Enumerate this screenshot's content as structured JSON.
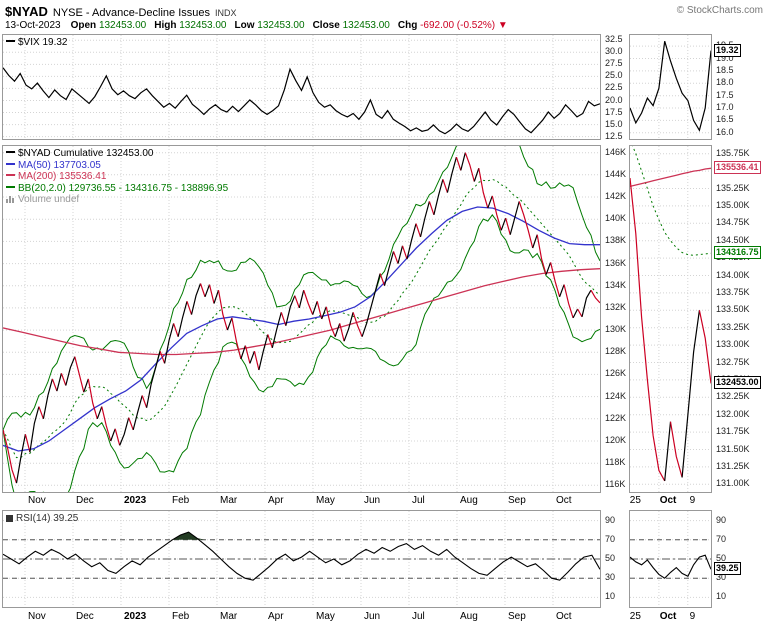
{
  "header": {
    "symbol": "$NYAD",
    "name": "NYSE - Advance-Decline Issues",
    "exchange": "INDX",
    "copyright": "© StockCharts.com",
    "date": "13-Oct-2023",
    "quote_items": [
      {
        "label": "Open",
        "value": "132453.00",
        "color": "#007000"
      },
      {
        "label": "High",
        "value": "132453.00",
        "color": "#007000"
      },
      {
        "label": "Low",
        "value": "132453.00",
        "color": "#007000"
      },
      {
        "label": "Close",
        "value": "132453.00",
        "color": "#007000"
      },
      {
        "label": "Chg",
        "value": "-692.00 (-0.52%) ▼",
        "color": "#cc0022"
      }
    ]
  },
  "colors": {
    "price_up": "#000000",
    "price_down": "#cc0022",
    "ma50": "#3333cc",
    "ma200": "#cc3355",
    "bbands": "#007a00",
    "vix": "#000000",
    "rsi": "#000000",
    "rsi_fill": "#223b22",
    "volume": "#999999",
    "grid": "#d4d4d4",
    "panel_border": "#999999"
  },
  "xaxis": {
    "months": [
      {
        "t": "Nov"
      },
      {
        "t": "Dec"
      },
      {
        "t": "2023",
        "bold": true
      },
      {
        "t": "Feb"
      },
      {
        "t": "Mar"
      },
      {
        "t": "Apr"
      },
      {
        "t": "May"
      },
      {
        "t": "Jun"
      },
      {
        "t": "Jul"
      },
      {
        "t": "Aug"
      },
      {
        "t": "Sep"
      },
      {
        "t": "Oct"
      }
    ],
    "zoom": [
      {
        "t": "25",
        "f": 0.01
      },
      {
        "t": "Oct",
        "f": 0.37,
        "bold": true
      },
      {
        "t": "9",
        "f": 0.73
      }
    ]
  },
  "chart_data": [
    {
      "id": "vix",
      "type": "line",
      "title": "$VIX",
      "last": 19.32,
      "legend": [
        {
          "icon": "line",
          "color": "#000000",
          "text": "$VIX 19.32"
        }
      ],
      "ylim": [
        12.0,
        33.6
      ],
      "yticks": [
        {
          "v": 32.5,
          "t": "32.5"
        },
        {
          "v": 30.0,
          "t": "30.0"
        },
        {
          "v": 27.5,
          "t": "27.5"
        },
        {
          "v": 25.0,
          "t": "25.0"
        },
        {
          "v": 22.5,
          "t": "22.5"
        },
        {
          "v": 20.0,
          "t": "20.0"
        },
        {
          "v": 17.5,
          "t": "17.5"
        },
        {
          "v": 15.0,
          "t": "15.0"
        },
        {
          "v": 12.5,
          "t": "12.5"
        }
      ],
      "months_grid": true,
      "series": [
        {
          "name": "$VIX",
          "color": "#000000",
          "width": 1.2,
          "values": [
            26.8,
            25.2,
            24.0,
            25.6,
            23.2,
            22.4,
            23.6,
            22.0,
            20.6,
            22.2,
            21.0,
            20.2,
            22.4,
            21.4,
            20.4,
            19.4,
            20.8,
            22.9,
            25.1,
            22.4,
            21.2,
            22.0,
            21.0,
            20.4,
            21.6,
            22.4,
            21.0,
            19.8,
            18.6,
            19.4,
            18.4,
            19.8,
            21.1,
            19.2,
            18.2,
            17.1,
            18.3,
            19.1,
            18.1,
            17.6,
            18.8,
            17.7,
            18.9,
            20.1,
            19.1,
            17.9,
            17.1,
            17.9,
            18.9,
            22.2,
            26.5,
            24.1,
            22.1,
            24.9,
            21.6,
            19.6,
            18.6,
            19.1,
            17.9,
            17.1,
            16.6,
            17.3,
            16.1,
            17.6,
            20.1,
            17.1,
            16.3,
            17.9,
            16.1,
            15.3,
            14.6,
            13.7,
            14.3,
            13.6,
            13.9,
            14.9,
            13.7,
            13.1,
            13.9,
            15.1,
            14.1,
            13.6,
            14.6,
            16.1,
            17.6,
            15.9,
            14.9,
            16.6,
            18.1,
            17.1,
            15.6,
            14.1,
            13.3,
            14.6,
            15.9,
            17.6,
            16.3,
            17.3,
            19.1,
            17.9,
            16.6,
            17.3,
            19.8,
            18.9,
            19.32
          ]
        }
      ]
    },
    {
      "id": "nyad",
      "type": "line",
      "title": "$NYAD Cumulative",
      "units": "thousands (K)",
      "last": 132453.0,
      "legend": [
        {
          "icon": "line",
          "color": "#000000",
          "text": "$NYAD Cumulative 132453.00"
        },
        {
          "icon": "line",
          "color": "#3333cc",
          "text": "MA(50) 137703.05"
        },
        {
          "icon": "line",
          "color": "#cc3355",
          "text": "MA(200) 135536.41"
        },
        {
          "icon": "line",
          "color": "#007a00",
          "text": "BB(20,2.0) 129736.55 - 134316.75 - 138896.95"
        },
        {
          "icon": "bars",
          "color": "#999999",
          "text": "Volume undef"
        }
      ],
      "ylim": [
        115.4,
        146.6
      ],
      "yticks": [
        {
          "v": 146,
          "t": "146K"
        },
        {
          "v": 144,
          "t": "144K"
        },
        {
          "v": 142,
          "t": "142K"
        },
        {
          "v": 140,
          "t": "140K"
        },
        {
          "v": 138,
          "t": "138K"
        },
        {
          "v": 136,
          "t": "136K"
        },
        {
          "v": 134,
          "t": "134K"
        },
        {
          "v": 132,
          "t": "132K"
        },
        {
          "v": 130,
          "t": "130K"
        },
        {
          "v": 128,
          "t": "128K"
        },
        {
          "v": 126,
          "t": "126K"
        },
        {
          "v": 124,
          "t": "124K"
        },
        {
          "v": 122,
          "t": "122K"
        },
        {
          "v": 120,
          "t": "120K"
        },
        {
          "v": 118,
          "t": "118K"
        },
        {
          "v": 116,
          "t": "116K"
        }
      ],
      "months_grid": true,
      "series": [
        {
          "name": "BB(20,2.0)",
          "type": "bbands",
          "color": "#007a00",
          "window": 13,
          "mult": 2.2,
          "last_lower": 129736.55,
          "last_mid": 134316.75,
          "last_upper": 138896.95
        },
        {
          "name": "MA(50)",
          "color": "#3333cc",
          "width": 1.3,
          "last": 137703.05,
          "values": [
            119.6,
            119.1,
            119.3,
            120.0,
            121.0,
            122.0,
            123.0,
            123.8,
            124.5,
            125.5,
            127.0,
            128.4,
            129.7,
            130.4,
            131.0,
            131.2,
            131.0,
            130.8,
            130.5,
            130.8,
            131.0,
            131.3,
            131.6,
            132.1,
            133.0,
            134.4,
            135.9,
            137.4,
            138.7,
            139.9,
            140.7,
            141.1,
            141.0,
            140.5,
            139.8,
            139.0,
            138.3,
            137.8,
            137.7,
            137.7
          ]
        },
        {
          "name": "MA(200)",
          "color": "#cc3355",
          "width": 1.3,
          "last": 135536.41,
          "values": [
            130.2,
            129.8,
            129.4,
            129.0,
            128.6,
            128.3,
            128.0,
            127.9,
            127.8,
            127.8,
            127.9,
            128.0,
            128.2,
            128.5,
            128.8,
            129.2,
            129.6,
            130.0,
            130.5,
            131.0,
            131.5,
            132.0,
            132.5,
            133.0,
            133.5,
            134.0,
            134.4,
            134.8,
            135.1,
            135.3,
            135.45,
            135.54
          ]
        },
        {
          "name": "$NYAD Cumulative",
          "key": "price",
          "type": "updown",
          "up": "#000000",
          "down": "#cc0022",
          "width": 1.2,
          "last": 132453.0,
          "values": [
            121.0,
            119.4,
            117.4,
            116.2,
            118.6,
            120.6,
            119.0,
            121.6,
            123.1,
            122.0,
            124.1,
            125.6,
            124.5,
            126.1,
            125.0,
            126.6,
            127.6,
            126.0,
            124.4,
            125.6,
            123.4,
            122.0,
            123.1,
            121.4,
            120.0,
            121.1,
            119.6,
            120.6,
            122.1,
            121.0,
            122.6,
            124.1,
            123.0,
            125.1,
            126.6,
            128.1,
            127.0,
            129.1,
            130.6,
            129.4,
            131.1,
            132.6,
            131.4,
            133.1,
            134.2,
            133.0,
            134.1,
            132.4,
            133.6,
            131.4,
            130.0,
            131.1,
            129.0,
            127.4,
            128.6,
            127.0,
            128.1,
            126.4,
            128.1,
            129.6,
            128.4,
            130.1,
            131.6,
            130.4,
            132.1,
            133.1,
            132.0,
            133.6,
            132.4,
            131.4,
            132.6,
            131.0,
            132.1,
            130.4,
            129.4,
            130.6,
            129.0,
            130.1,
            131.6,
            130.4,
            129.4,
            130.6,
            132.1,
            133.6,
            135.1,
            134.0,
            135.6,
            137.1,
            136.0,
            137.6,
            136.4,
            138.1,
            139.6,
            138.4,
            140.1,
            141.6,
            140.4,
            142.1,
            143.6,
            142.4,
            144.1,
            145.6,
            144.4,
            146.0,
            144.9,
            143.4,
            144.6,
            142.4,
            141.0,
            142.1,
            140.4,
            139.0,
            140.1,
            138.6,
            140.1,
            141.6,
            140.4,
            139.0,
            137.4,
            138.6,
            136.4,
            135.0,
            136.1,
            134.4,
            133.0,
            134.1,
            132.4,
            131.1,
            131.9,
            131.2,
            132.9,
            133.6,
            132.9,
            132.45
          ]
        }
      ]
    },
    {
      "id": "rsi",
      "type": "line",
      "title": "RSI(14)",
      "last": 39.25,
      "legend": [
        {
          "icon": "square",
          "color": "#333333",
          "text": "RSI(14) 39.25"
        }
      ],
      "ylim": [
        0,
        100
      ],
      "yticks": [
        {
          "v": 90,
          "t": "90"
        },
        {
          "v": 70,
          "t": "70"
        },
        {
          "v": 50,
          "t": "50"
        },
        {
          "v": 30,
          "t": "30"
        },
        {
          "v": 10,
          "t": "10"
        }
      ],
      "hlines": [
        {
          "v": 70,
          "style": "dashed"
        },
        {
          "v": 50,
          "style": "dashdot"
        },
        {
          "v": 30,
          "style": "dashed"
        }
      ],
      "months_grid": true,
      "series": [
        {
          "name": "RSI(14)",
          "color": "#000000",
          "width": 1.1,
          "fill_above": 70,
          "fill_color": "#223b22",
          "values": [
            55,
            50,
            45,
            52,
            58,
            54,
            60,
            56,
            50,
            55,
            48,
            42,
            46,
            38,
            35,
            42,
            48,
            44,
            52,
            58,
            64,
            70,
            75,
            78,
            72,
            65,
            58,
            50,
            42,
            35,
            30,
            28,
            35,
            42,
            50,
            55,
            48,
            52,
            58,
            52,
            46,
            50,
            44,
            48,
            55,
            60,
            56,
            62,
            58,
            63,
            66,
            60,
            64,
            58,
            54,
            60,
            52,
            46,
            40,
            35,
            33,
            40,
            47,
            52,
            47,
            42,
            45,
            38,
            30,
            28,
            36,
            45,
            52,
            54,
            39.25
          ]
        }
      ]
    },
    {
      "id": "vix_zoom",
      "type": "line",
      "title": "$VIX (zoom)",
      "ylim": [
        15.75,
        19.95
      ],
      "yticks": [
        {
          "v": 19.5,
          "t": "19.5"
        },
        {
          "v": 19.0,
          "t": "19.0"
        },
        {
          "v": 18.5,
          "t": "18.5"
        },
        {
          "v": 18.0,
          "t": "18.0"
        },
        {
          "v": 17.5,
          "t": "17.5"
        },
        {
          "v": 17.0,
          "t": "17.0"
        },
        {
          "v": 16.5,
          "t": "16.5"
        },
        {
          "v": 16.0,
          "t": "16.0"
        }
      ],
      "xgrid": [
        0.357,
        0.714
      ],
      "value_labels": [
        {
          "v": 19.32,
          "t": "19.32",
          "color": "#000000"
        }
      ],
      "series": [
        {
          "name": "$VIX",
          "color": "#000000",
          "width": 1.2,
          "values": [
            17.0,
            16.4,
            16.8,
            17.4,
            17.1,
            17.8,
            19.7,
            18.9,
            18.2,
            17.6,
            17.3,
            16.5,
            16.1,
            17.0,
            19.32
          ]
        }
      ]
    },
    {
      "id": "nyad_zoom",
      "type": "line",
      "title": "$NYAD Cumulative (zoom)",
      "units": "thousands (K)",
      "ylim": [
        130.89,
        135.86
      ],
      "yticks": [
        {
          "v": 135.75,
          "t": "135.75K"
        },
        {
          "v": 135.5,
          "t": "135.50K"
        },
        {
          "v": 135.25,
          "t": "135.25K"
        },
        {
          "v": 135.0,
          "t": "135.00K"
        },
        {
          "v": 134.75,
          "t": "134.75K"
        },
        {
          "v": 134.5,
          "t": "134.50K"
        },
        {
          "v": 134.25,
          "t": "134.25K"
        },
        {
          "v": 134.0,
          "t": "134.00K"
        },
        {
          "v": 133.75,
          "t": "133.75K"
        },
        {
          "v": 133.5,
          "t": "133.50K"
        },
        {
          "v": 133.25,
          "t": "133.25K"
        },
        {
          "v": 133.0,
          "t": "133.00K"
        },
        {
          "v": 132.75,
          "t": "132.75K"
        },
        {
          "v": 132.5,
          "t": "132.50K"
        },
        {
          "v": 132.25,
          "t": "132.25K"
        },
        {
          "v": 132.0,
          "t": "132.00K"
        },
        {
          "v": 131.75,
          "t": "131.75K"
        },
        {
          "v": 131.5,
          "t": "131.50K"
        },
        {
          "v": 131.25,
          "t": "131.25K"
        },
        {
          "v": 131.0,
          "t": "131.00K"
        }
      ],
      "xgrid": [
        0.357,
        0.714
      ],
      "value_labels": [
        {
          "v": 135.54,
          "t": "135536.41",
          "color": "#cc3355"
        },
        {
          "v": 134.32,
          "t": "134316.75",
          "color": "#007a00"
        },
        {
          "v": 132.45,
          "t": "132453.00",
          "color": "#000000"
        }
      ],
      "series": [
        {
          "name": "BB middle",
          "color": "#007a00",
          "width": 1,
          "dash": "2,3",
          "values": [
            135.95,
            135.75,
            135.5,
            135.25,
            135.0,
            134.8,
            134.62,
            134.5,
            134.4,
            134.33,
            134.3,
            134.29,
            134.3,
            134.31,
            134.32
          ]
        },
        {
          "name": "MA(200)",
          "color": "#cc3355",
          "width": 1.3,
          "values": [
            135.28,
            135.3,
            135.32,
            135.34,
            135.36,
            135.38,
            135.4,
            135.42,
            135.44,
            135.46,
            135.48,
            135.5,
            135.51,
            135.53,
            135.54
          ]
        },
        {
          "name": "$NYAD Cumulative",
          "type": "updown",
          "up": "#000000",
          "down": "#cc0022",
          "width": 1.2,
          "values": [
            135.4,
            134.6,
            133.4,
            132.5,
            131.7,
            131.2,
            131.05,
            131.9,
            131.4,
            131.1,
            132.0,
            132.9,
            133.5,
            133.1,
            132.45
          ]
        }
      ]
    },
    {
      "id": "rsi_zoom",
      "type": "line",
      "title": "RSI(14) (zoom)",
      "ylim": [
        0,
        100
      ],
      "yticks": [
        {
          "v": 90,
          "t": "90"
        },
        {
          "v": 70,
          "t": "70"
        },
        {
          "v": 50,
          "t": "50"
        },
        {
          "v": 30,
          "t": "30"
        },
        {
          "v": 10,
          "t": "10"
        }
      ],
      "hlines": [
        {
          "v": 70,
          "style": "dashed"
        },
        {
          "v": 50,
          "style": "dashdot"
        },
        {
          "v": 30,
          "style": "dashed"
        }
      ],
      "xgrid": [
        0.357,
        0.714
      ],
      "value_labels": [
        {
          "v": 39.25,
          "t": "39.25",
          "color": "#000000"
        }
      ],
      "series": [
        {
          "name": "RSI(14)",
          "color": "#000000",
          "width": 1.1,
          "values": [
            52,
            47,
            44,
            49,
            41,
            34,
            30,
            36,
            41,
            35,
            32,
            44,
            52,
            54,
            39.25
          ]
        }
      ]
    }
  ]
}
